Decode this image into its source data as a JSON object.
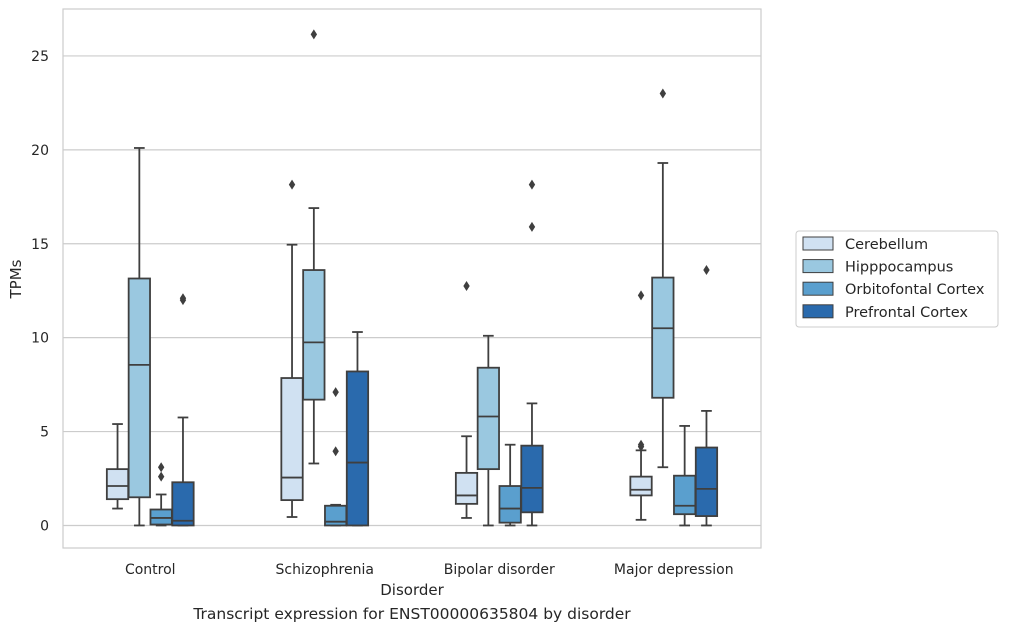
{
  "caption": "Transcript expression for ENST00000635804 by disorder",
  "chart_data": {
    "type": "box",
    "xlabel": "Disorder",
    "ylabel": "TPMs",
    "categories": [
      "Control",
      "Schizophrenia",
      "Bipolar disorder",
      "Major depression"
    ],
    "ylim": [
      -1.2,
      27.5
    ],
    "yticks": [
      0,
      5,
      10,
      15,
      20,
      25
    ],
    "grid": true,
    "legend_position": "right",
    "series": [
      {
        "name": "Cerebellum",
        "color": "#d0e1f2",
        "boxes": [
          {
            "whislo": 0.9,
            "q1": 1.4,
            "med": 2.1,
            "q3": 3.0,
            "whishi": 5.4,
            "fliers": []
          },
          {
            "whislo": 0.45,
            "q1": 1.35,
            "med": 2.55,
            "q3": 7.85,
            "whishi": 14.95,
            "fliers": [
              18.15
            ]
          },
          {
            "whislo": 0.4,
            "q1": 1.15,
            "med": 1.6,
            "q3": 2.8,
            "whishi": 4.75,
            "fliers": [
              12.75
            ]
          },
          {
            "whislo": 0.3,
            "q1": 1.6,
            "med": 1.9,
            "q3": 2.6,
            "whishi": 4.0,
            "fliers": [
              4.2,
              4.3,
              12.25
            ]
          }
        ]
      },
      {
        "name": "Hipppocampus",
        "color": "#9ac8e0",
        "boxes": [
          {
            "whislo": 0.0,
            "q1": 1.5,
            "med": 8.55,
            "q3": 13.15,
            "whishi": 20.1,
            "fliers": []
          },
          {
            "whislo": 3.3,
            "q1": 6.7,
            "med": 9.75,
            "q3": 13.6,
            "whishi": 16.9,
            "fliers": [
              26.15
            ]
          },
          {
            "whislo": 0.0,
            "q1": 3.0,
            "med": 5.8,
            "q3": 8.4,
            "whishi": 10.1,
            "fliers": []
          },
          {
            "whislo": 3.1,
            "q1": 6.8,
            "med": 10.5,
            "q3": 13.2,
            "whishi": 19.3,
            "fliers": [
              23.0
            ]
          }
        ]
      },
      {
        "name": "Orbitofontal Cortex",
        "color": "#5a9fce",
        "boxes": [
          {
            "whislo": 0.0,
            "q1": 0.05,
            "med": 0.4,
            "q3": 0.85,
            "whishi": 1.65,
            "fliers": [
              2.6,
              3.1
            ]
          },
          {
            "whislo": 0.0,
            "q1": 0.0,
            "med": 0.2,
            "q3": 1.05,
            "whishi": 1.1,
            "fliers": [
              3.95,
              7.1
            ]
          },
          {
            "whislo": 0.0,
            "q1": 0.15,
            "med": 0.9,
            "q3": 2.1,
            "whishi": 4.3,
            "fliers": []
          },
          {
            "whislo": 0.0,
            "q1": 0.6,
            "med": 1.05,
            "q3": 2.65,
            "whishi": 5.3,
            "fliers": []
          }
        ]
      },
      {
        "name": "Prefrontal Cortex",
        "color": "#2a6aad",
        "boxes": [
          {
            "whislo": 0.0,
            "q1": 0.0,
            "med": 0.25,
            "q3": 2.3,
            "whishi": 5.75,
            "fliers": [
              12.0,
              12.1
            ]
          },
          {
            "whislo": 0.0,
            "q1": 0.0,
            "med": 3.35,
            "q3": 8.2,
            "whishi": 10.3,
            "fliers": []
          },
          {
            "whislo": 0.0,
            "q1": 0.7,
            "med": 2.0,
            "q3": 4.25,
            "whishi": 6.5,
            "fliers": [
              15.9,
              18.15
            ]
          },
          {
            "whislo": 0.0,
            "q1": 0.5,
            "med": 1.95,
            "q3": 4.15,
            "whishi": 6.1,
            "fliers": [
              13.6
            ]
          }
        ]
      }
    ]
  }
}
